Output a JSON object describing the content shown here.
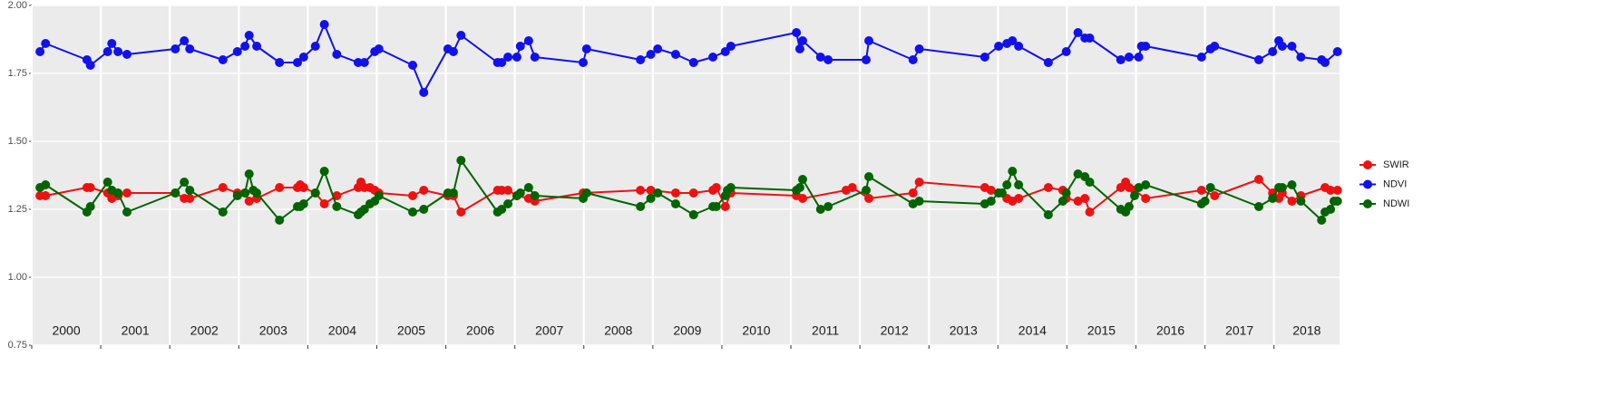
{
  "chart_data": {
    "type": "line",
    "xlim": [
      2000,
      2018.95
    ],
    "xticks": [
      2000,
      2001,
      2002,
      2003,
      2004,
      2005,
      2006,
      2007,
      2008,
      2009,
      2010,
      2011,
      2012,
      2013,
      2014,
      2015,
      2016,
      2017,
      2018,
      2019
    ],
    "years": [
      "2000",
      "2001",
      "2002",
      "2003",
      "2004",
      "2005",
      "2006",
      "2007",
      "2008",
      "2009",
      "2010",
      "2011",
      "2012",
      "2013",
      "2014",
      "2015",
      "2016",
      "2017",
      "2018"
    ],
    "ylim": [
      0.75,
      2.0
    ],
    "yticks": [
      0.75,
      {
        "value": 1.0,
        "label": "1.00"
      },
      1.25,
      {
        "value": 1.5,
        "label": "1.50"
      },
      1.75,
      {
        "value": 2.0,
        "label": "2.00"
      }
    ],
    "grid": true,
    "legend": "right",
    "series": [
      {
        "name": "SWIR",
        "color": "#ee1111",
        "x": [
          2000.12,
          2000.2,
          2000.8,
          2000.85,
          2001.1,
          2001.16,
          2001.25,
          2001.38,
          2002.08,
          2002.21,
          2002.29,
          2002.77,
          2002.98,
          2003.09,
          2003.15,
          2003.26,
          2003.59,
          2003.85,
          2003.89,
          2003.94,
          2004.11,
          2004.24,
          2004.42,
          2004.73,
          2004.77,
          2004.82,
          2004.9,
          2004.97,
          2005.03,
          2005.52,
          2005.68,
          2006.03,
          2006.11,
          2006.22,
          2006.75,
          2006.81,
          2006.9,
          2007.03,
          2007.2,
          2007.29,
          2007.99,
          2008.82,
          2008.97,
          2009.33,
          2009.59,
          2009.87,
          2009.92,
          2010.05,
          2010.13,
          2011.08,
          2011.17,
          2011.8,
          2011.89,
          2012.13,
          2012.77,
          2012.86,
          2013.81,
          2013.9,
          2014.01,
          2014.13,
          2014.21,
          2014.3,
          2014.73,
          2014.94,
          2014.99,
          2015.16,
          2015.26,
          2015.33,
          2015.78,
          2015.85,
          2015.9,
          2015.98,
          2016.14,
          2016.95,
          2017.14,
          2017.78,
          2017.98,
          2018.07,
          2018.12,
          2018.26,
          2018.39,
          2018.74,
          2018.82,
          2018.92
        ],
        "values": [
          1.3,
          1.3,
          1.33,
          1.33,
          1.31,
          1.29,
          1.3,
          1.31,
          1.31,
          1.29,
          1.29,
          1.33,
          1.31,
          1.31,
          1.28,
          1.29,
          1.33,
          1.33,
          1.34,
          1.33,
          1.31,
          1.27,
          1.3,
          1.33,
          1.35,
          1.33,
          1.33,
          1.32,
          1.31,
          1.3,
          1.32,
          1.3,
          1.3,
          1.24,
          1.32,
          1.32,
          1.32,
          1.3,
          1.29,
          1.28,
          1.31,
          1.32,
          1.32,
          1.31,
          1.31,
          1.32,
          1.33,
          1.26,
          1.31,
          1.3,
          1.29,
          1.32,
          1.33,
          1.29,
          1.31,
          1.35,
          1.33,
          1.32,
          1.31,
          1.29,
          1.28,
          1.29,
          1.33,
          1.32,
          1.29,
          1.28,
          1.29,
          1.24,
          1.33,
          1.35,
          1.33,
          1.32,
          1.29,
          1.32,
          1.3,
          1.36,
          1.31,
          1.29,
          1.31,
          1.28,
          1.3,
          1.33,
          1.32,
          1.32
        ]
      },
      {
        "name": "NDVI",
        "color": "#1111ee",
        "x": [
          2000.12,
          2000.2,
          2000.8,
          2000.85,
          2001.1,
          2001.16,
          2001.25,
          2001.38,
          2002.08,
          2002.21,
          2002.29,
          2002.77,
          2002.98,
          2003.09,
          2003.15,
          2003.26,
          2003.59,
          2003.85,
          2003.94,
          2004.11,
          2004.24,
          2004.42,
          2004.73,
          2004.82,
          2004.97,
          2005.03,
          2005.52,
          2005.68,
          2006.03,
          2006.11,
          2006.22,
          2006.75,
          2006.81,
          2006.9,
          2007.03,
          2007.08,
          2007.2,
          2007.29,
          2007.99,
          2008.04,
          2008.82,
          2008.97,
          2009.07,
          2009.33,
          2009.59,
          2009.87,
          2010.05,
          2010.13,
          2011.08,
          2011.13,
          2011.17,
          2011.43,
          2011.54,
          2012.09,
          2012.13,
          2012.77,
          2012.86,
          2013.81,
          2014.01,
          2014.13,
          2014.21,
          2014.3,
          2014.73,
          2014.99,
          2015.16,
          2015.26,
          2015.33,
          2015.78,
          2015.9,
          2016.04,
          2016.08,
          2016.14,
          2016.95,
          2017.08,
          2017.14,
          2017.78,
          2017.98,
          2018.07,
          2018.12,
          2018.26,
          2018.39,
          2018.69,
          2018.74,
          2018.92
        ],
        "values": [
          1.83,
          1.86,
          1.8,
          1.78,
          1.83,
          1.86,
          1.83,
          1.82,
          1.84,
          1.87,
          1.84,
          1.8,
          1.83,
          1.85,
          1.89,
          1.85,
          1.79,
          1.79,
          1.81,
          1.85,
          1.93,
          1.82,
          1.79,
          1.79,
          1.83,
          1.84,
          1.78,
          1.68,
          1.84,
          1.83,
          1.89,
          1.79,
          1.79,
          1.81,
          1.81,
          1.85,
          1.87,
          1.81,
          1.79,
          1.84,
          1.8,
          1.82,
          1.84,
          1.82,
          1.79,
          1.81,
          1.83,
          1.85,
          1.9,
          1.84,
          1.87,
          1.81,
          1.8,
          1.8,
          1.87,
          1.8,
          1.84,
          1.81,
          1.85,
          1.86,
          1.87,
          1.85,
          1.79,
          1.83,
          1.9,
          1.88,
          1.88,
          1.8,
          1.81,
          1.81,
          1.85,
          1.85,
          1.81,
          1.84,
          1.85,
          1.8,
          1.83,
          1.87,
          1.85,
          1.85,
          1.81,
          1.8,
          1.79,
          1.83
        ]
      },
      {
        "name": "NDWI",
        "color": "#006400",
        "x": [
          2000.12,
          2000.2,
          2000.8,
          2000.85,
          2001.1,
          2001.16,
          2001.25,
          2001.38,
          2002.08,
          2002.21,
          2002.29,
          2002.77,
          2002.98,
          2003.09,
          2003.15,
          2003.21,
          2003.26,
          2003.59,
          2003.85,
          2003.89,
          2003.94,
          2004.11,
          2004.24,
          2004.42,
          2004.73,
          2004.77,
          2004.82,
          2004.9,
          2004.97,
          2005.03,
          2005.52,
          2005.68,
          2006.03,
          2006.11,
          2006.22,
          2006.75,
          2006.81,
          2006.9,
          2007.03,
          2007.08,
          2007.2,
          2007.29,
          2007.99,
          2008.04,
          2008.82,
          2008.97,
          2009.07,
          2009.33,
          2009.59,
          2009.87,
          2009.92,
          2010.05,
          2010.08,
          2010.13,
          2011.08,
          2011.13,
          2011.17,
          2011.43,
          2011.54,
          2012.09,
          2012.13,
          2012.77,
          2012.86,
          2013.81,
          2013.9,
          2014.01,
          2014.06,
          2014.13,
          2014.21,
          2014.3,
          2014.73,
          2014.94,
          2014.99,
          2015.16,
          2015.26,
          2015.33,
          2015.78,
          2015.85,
          2015.9,
          2015.98,
          2016.04,
          2016.14,
          2016.95,
          2017.0,
          2017.08,
          2017.78,
          2017.98,
          2018.07,
          2018.12,
          2018.26,
          2018.39,
          2018.69,
          2018.74,
          2018.82,
          2018.87,
          2018.92
        ],
        "values": [
          1.33,
          1.34,
          1.24,
          1.26,
          1.35,
          1.32,
          1.31,
          1.24,
          1.31,
          1.35,
          1.32,
          1.24,
          1.3,
          1.31,
          1.38,
          1.32,
          1.31,
          1.21,
          1.26,
          1.26,
          1.27,
          1.31,
          1.39,
          1.26,
          1.23,
          1.24,
          1.25,
          1.27,
          1.28,
          1.3,
          1.24,
          1.25,
          1.31,
          1.31,
          1.43,
          1.24,
          1.25,
          1.27,
          1.3,
          1.31,
          1.33,
          1.3,
          1.29,
          1.31,
          1.26,
          1.29,
          1.31,
          1.27,
          1.23,
          1.26,
          1.26,
          1.3,
          1.32,
          1.33,
          1.32,
          1.33,
          1.36,
          1.25,
          1.26,
          1.32,
          1.37,
          1.27,
          1.28,
          1.27,
          1.28,
          1.31,
          1.31,
          1.34,
          1.39,
          1.34,
          1.23,
          1.28,
          1.31,
          1.38,
          1.37,
          1.35,
          1.25,
          1.24,
          1.26,
          1.3,
          1.33,
          1.34,
          1.27,
          1.28,
          1.33,
          1.26,
          1.29,
          1.33,
          1.33,
          1.34,
          1.28,
          1.21,
          1.24,
          1.25,
          1.28,
          1.28
        ]
      }
    ]
  }
}
